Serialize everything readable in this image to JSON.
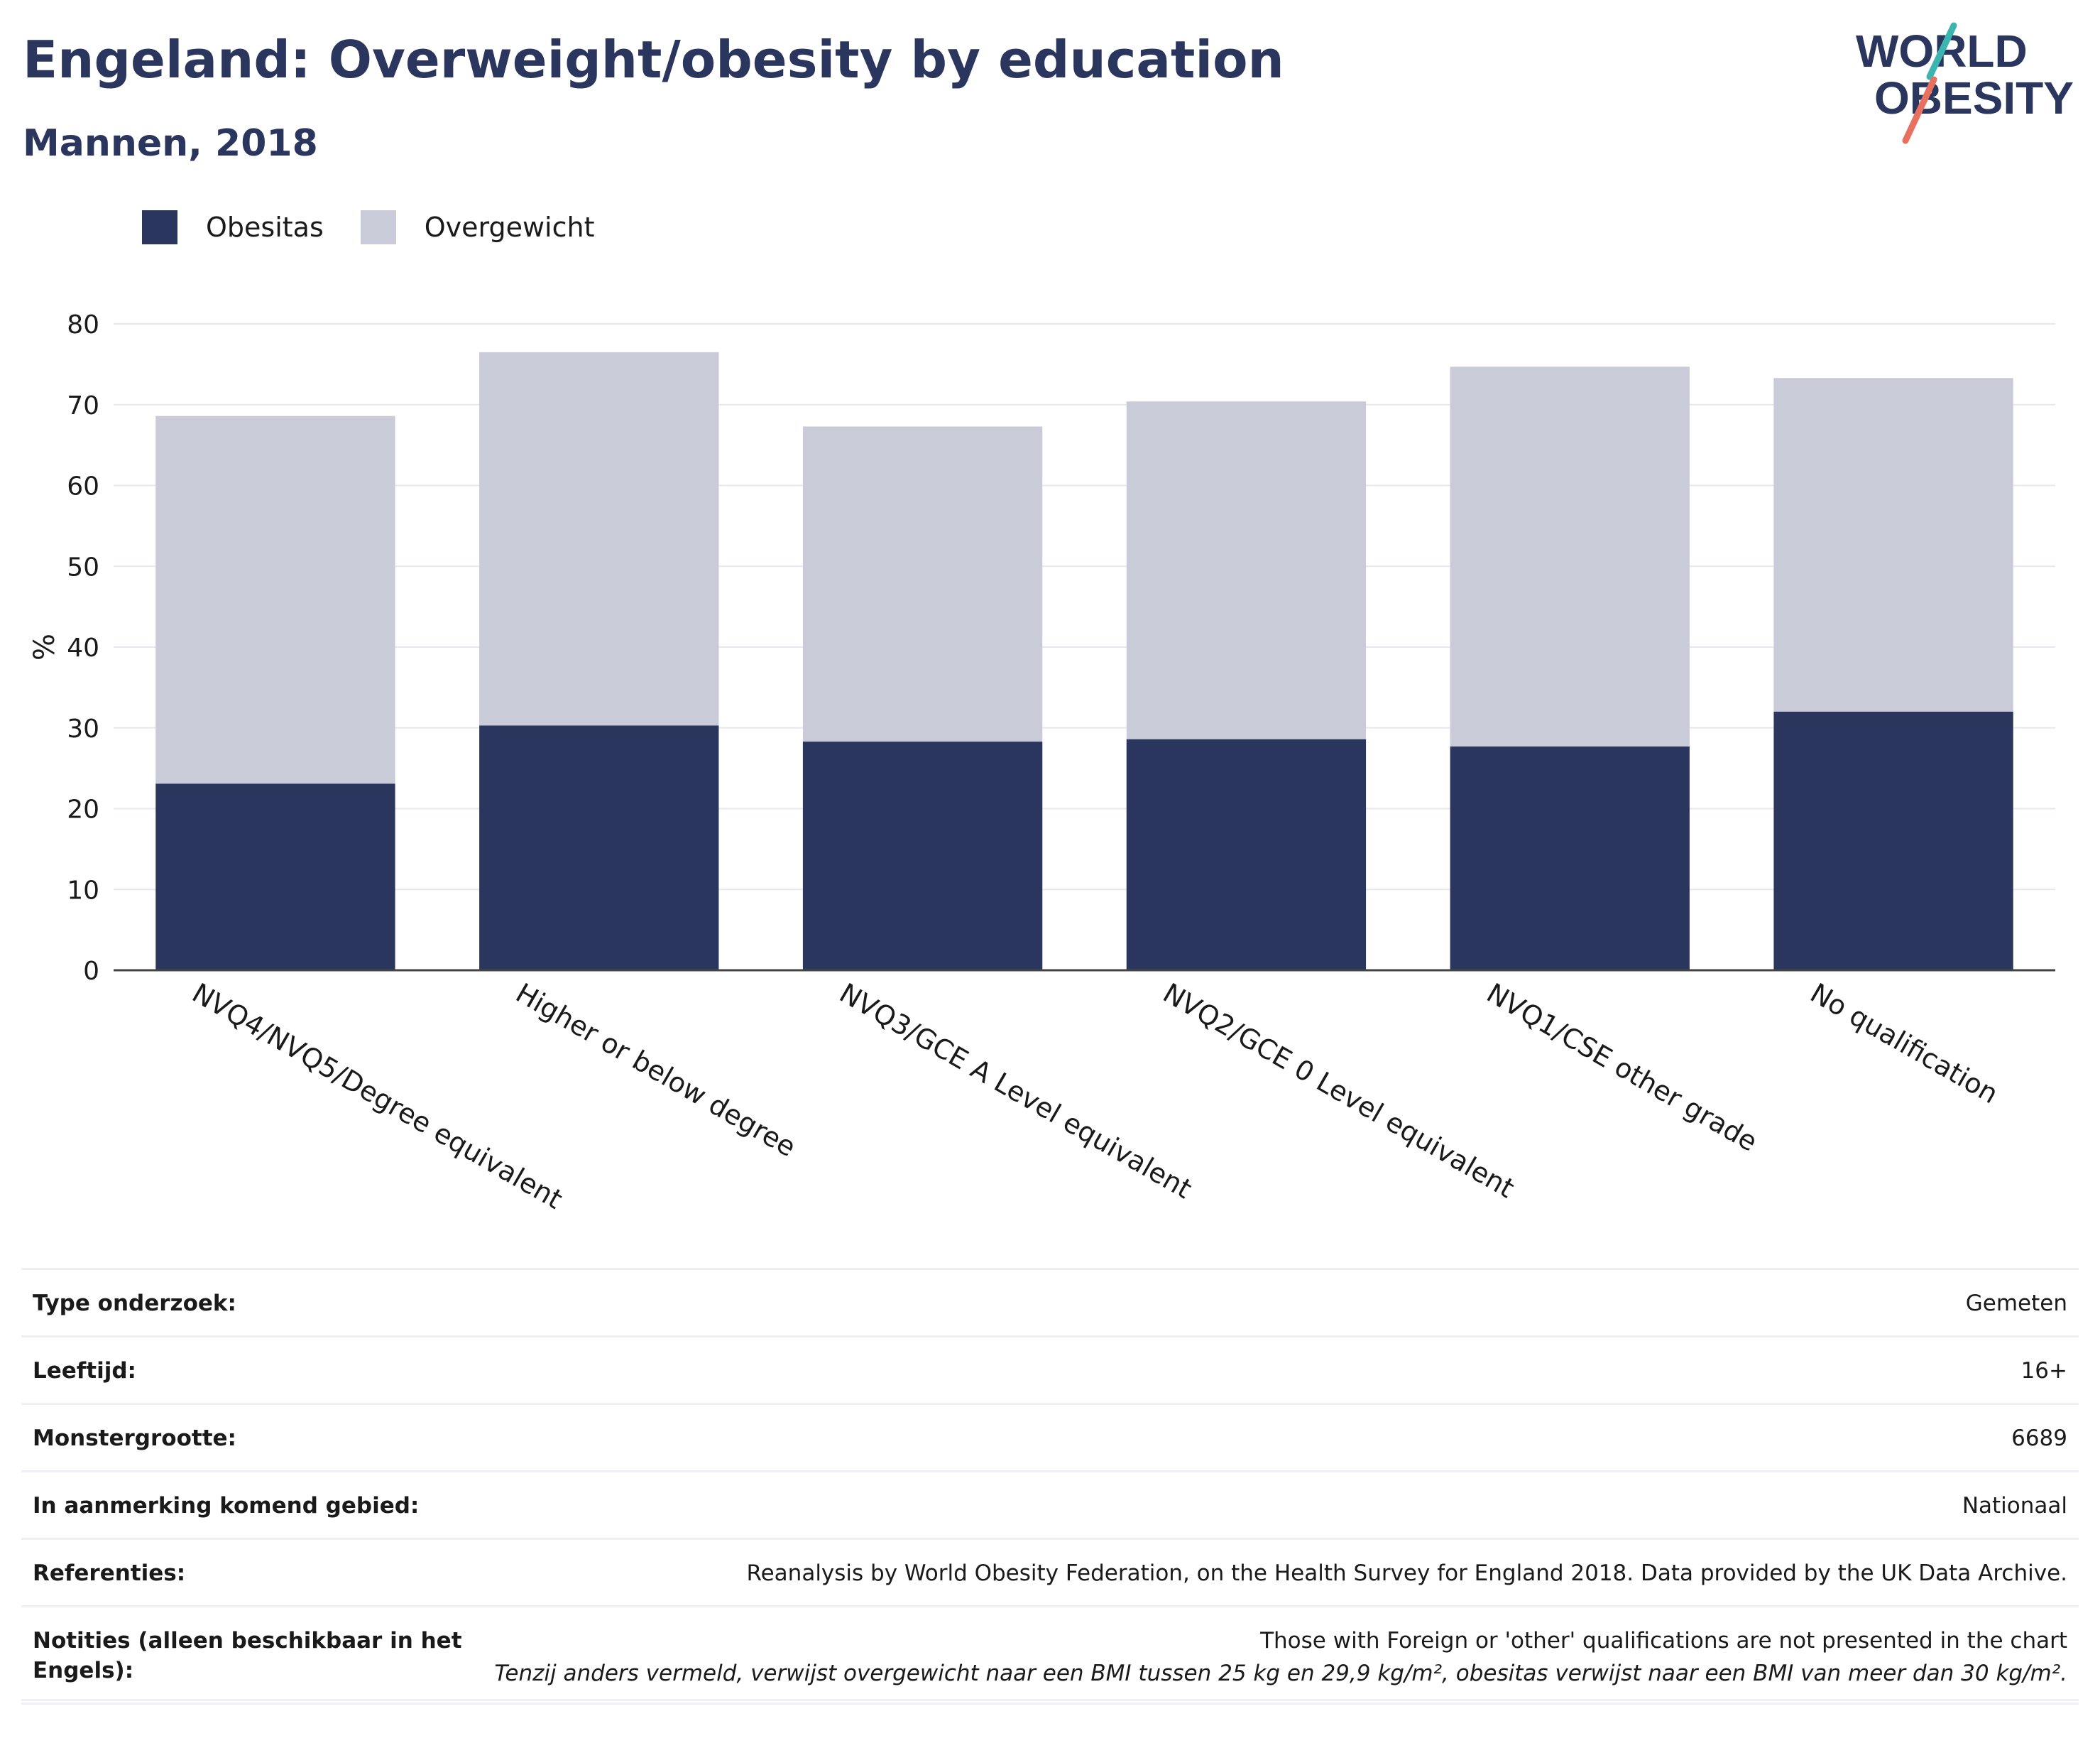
{
  "header": {
    "title": "Engeland: Overweight/obesity by education",
    "subtitle": "Mannen, 2018"
  },
  "logo": {
    "line1": "WORLD",
    "line2": "OBESITY"
  },
  "colors": {
    "obesitas": "#2b365f",
    "overgewicht": "#c9ccd8",
    "title": "#2b365f",
    "logo_teal": "#3ab5b0",
    "logo_coral": "#e8705f"
  },
  "legend": [
    {
      "label": "Obesitas",
      "color": "#2b365f"
    },
    {
      "label": "Overgewicht",
      "color": "#c9ccd8"
    }
  ],
  "chart_data": {
    "type": "bar",
    "stacked": true,
    "categories": [
      "NVQ4/NVQ5/Degree equivalent",
      "Higher or below degree",
      "NVQ3/GCE A Level equivalent",
      "NVQ2/GCE 0 Level equivalent",
      "NVQ1/CSE other grade",
      "No qualification"
    ],
    "series": [
      {
        "name": "Obesitas",
        "values": [
          23.1,
          30.3,
          28.3,
          28.6,
          27.7,
          32.0
        ]
      },
      {
        "name": "Overgewicht",
        "values": [
          45.5,
          46.2,
          39.0,
          41.8,
          47.0,
          41.3
        ]
      }
    ],
    "ylabel": "%",
    "ylim": [
      0,
      80
    ],
    "yticks": [
      "0",
      "10",
      "20",
      "30",
      "40",
      "50",
      "60",
      "70",
      "80"
    ],
    "grid": true,
    "legend_position": "top-left"
  },
  "info": [
    {
      "label": "Type onderzoek:",
      "value": "Gemeten"
    },
    {
      "label": "Leeftijd:",
      "value": "16+"
    },
    {
      "label": "Monstergrootte:",
      "value": "6689"
    },
    {
      "label": "In aanmerking komend gebied:",
      "value": "Nationaal"
    },
    {
      "label": "Referenties:",
      "value": "Reanalysis by World Obesity Federation, on the Health Survey for England 2018. Data provided by the UK Data Archive."
    },
    {
      "label": "Notities (alleen beschikbaar in het Engels):",
      "value": "Those with Foreign or 'other' qualifications are not presented in the chart"
    }
  ],
  "footnote": "Tenzij anders vermeld, verwijst overgewicht naar een BMI tussen 25 kg en 29,9 kg/m², obesitas verwijst naar een BMI van meer dan 30 kg/m²."
}
